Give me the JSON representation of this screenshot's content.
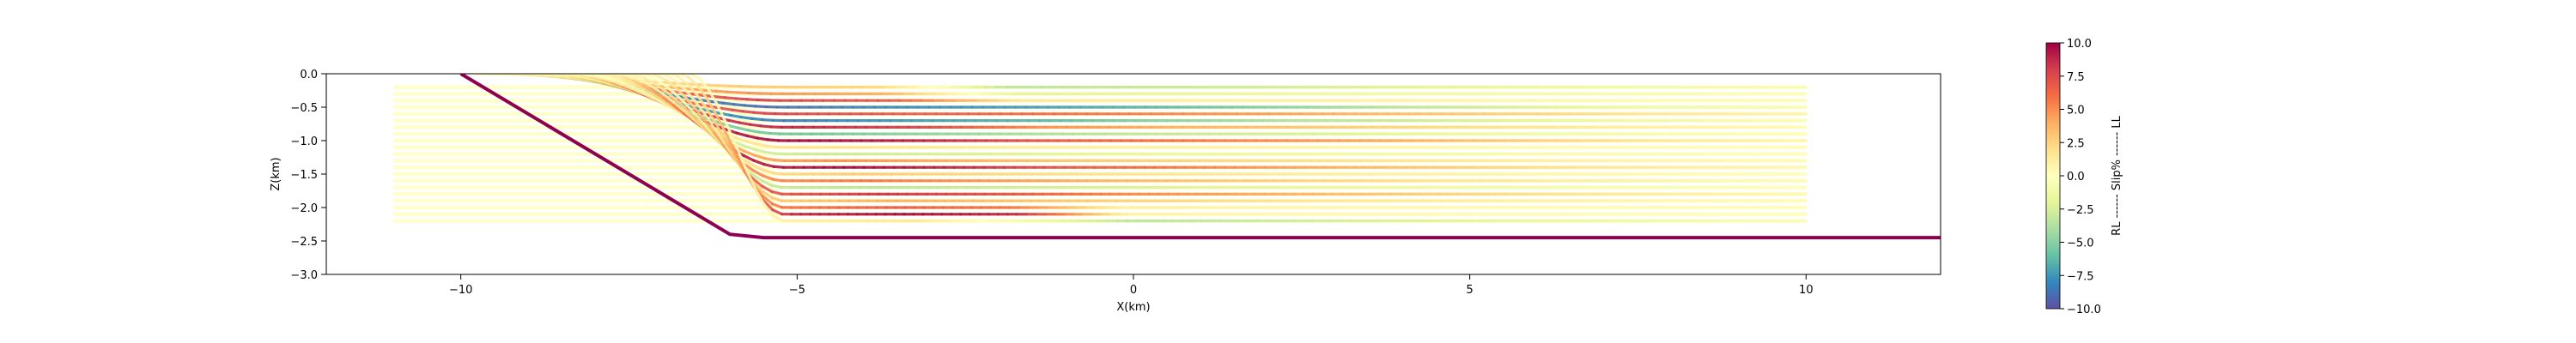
{
  "chart_data": {
    "type": "line",
    "title": "",
    "xlabel": "X(km)",
    "ylabel": "Z(km)",
    "xlim": [
      -12,
      12
    ],
    "ylim": [
      -3.0,
      0.0
    ],
    "xticks": [
      "−10",
      "−5",
      "0",
      "5",
      "10"
    ],
    "xtick_values": [
      -10,
      -5,
      0,
      5,
      10
    ],
    "yticks": [
      "0.0",
      "−0.5",
      "−1.0",
      "−1.5",
      "−2.0",
      "−2.5",
      "−3.0"
    ],
    "ytick_values": [
      0.0,
      -0.5,
      -1.0,
      -1.5,
      -2.0,
      -2.5,
      -3.0
    ],
    "fault": {
      "color": "#8e0152",
      "x": [
        -10.0,
        -6.0,
        -5.5,
        12.0
      ],
      "y": [
        0.0,
        -2.4,
        -2.45,
        -2.45
      ]
    },
    "colorbar": {
      "label": "RL ------ Slip% ------ LL",
      "min": -10.0,
      "max": 10.0,
      "ticks": [
        "10.0",
        "7.5",
        "5.0",
        "2.5",
        "0.0",
        "−2.5",
        "−5.0",
        "−7.5",
        "−10.0"
      ],
      "tick_values": [
        10.0,
        7.5,
        5.0,
        2.5,
        0.0,
        -2.5,
        -5.0,
        -7.5,
        -10.0
      ],
      "colormap": "Spectral_r"
    },
    "layers": [
      {
        "depth": -0.2,
        "slip": [
          0.4,
          2,
          3,
          2.5,
          -3.5,
          -3.2,
          -2.8,
          -2.2,
          -1.5,
          -1.0,
          -0.6
        ]
      },
      {
        "depth": -0.3,
        "slip": [
          0.5,
          3.5,
          5,
          4,
          -2,
          -1.8,
          -1.5,
          -1.2,
          -0.9,
          -0.6,
          -0.3
        ]
      },
      {
        "depth": -0.4,
        "slip": [
          0.6,
          6,
          8,
          7,
          1.5,
          1.2,
          1.0,
          0.8,
          0.6,
          0.4,
          0.3
        ]
      },
      {
        "depth": -0.5,
        "slip": [
          0.5,
          -8,
          -9,
          -8,
          -7.5,
          -6.5,
          -5,
          -3.5,
          -2.2,
          -1.2,
          -0.6
        ]
      },
      {
        "depth": -0.6,
        "slip": [
          0.5,
          6,
          8,
          7,
          6.5,
          5.5,
          4.5,
          3.5,
          2.5,
          1.5,
          0.8
        ]
      },
      {
        "depth": -0.7,
        "slip": [
          0.4,
          -7,
          -8.5,
          -7.5,
          -6.5,
          -5,
          -3.8,
          -2.8,
          -1.8,
          -1.0,
          -0.5
        ]
      },
      {
        "depth": -0.8,
        "slip": [
          0.5,
          8,
          9,
          8,
          5,
          4,
          3.2,
          2.4,
          1.6,
          0.9,
          0.4
        ]
      },
      {
        "depth": -0.9,
        "slip": [
          0.3,
          -5,
          -6,
          -5,
          -4,
          -3.2,
          -2.5,
          -1.8,
          -1.2,
          -0.7,
          -0.3
        ]
      },
      {
        "depth": -1.0,
        "slip": [
          0.6,
          9,
          10,
          9,
          7,
          6,
          5,
          3.8,
          2.6,
          1.5,
          0.7
        ]
      },
      {
        "depth": -1.1,
        "slip": [
          0.3,
          1.5,
          2,
          1.5,
          1.2,
          1.0,
          0.8,
          0.6,
          0.4,
          0.3,
          0.2
        ]
      },
      {
        "depth": -1.2,
        "slip": [
          0.4,
          -2.5,
          -3,
          -2.5,
          -2,
          -1.6,
          -1.3,
          -1.0,
          -0.7,
          -0.4,
          -0.2
        ]
      },
      {
        "depth": -1.3,
        "slip": [
          0.5,
          4,
          5,
          4,
          3,
          2.5,
          2,
          1.5,
          1.0,
          0.6,
          0.3
        ]
      },
      {
        "depth": -1.4,
        "slip": [
          0.7,
          9,
          10,
          9,
          7,
          5.5,
          4.2,
          3,
          2,
          1.2,
          0.6
        ]
      },
      {
        "depth": -1.5,
        "slip": [
          0.4,
          2,
          3,
          2.5,
          2,
          1.6,
          1.2,
          0.9,
          0.6,
          0.4,
          0.2
        ]
      },
      {
        "depth": -1.6,
        "slip": [
          0.5,
          5,
          6,
          5,
          4,
          3.2,
          2.5,
          1.8,
          1.2,
          0.7,
          0.3
        ]
      },
      {
        "depth": -1.7,
        "slip": [
          0.3,
          -3,
          -3.5,
          -3,
          -2.5,
          -2,
          -1.6,
          -1.2,
          -0.8,
          -0.5,
          -0.2
        ]
      },
      {
        "depth": -1.8,
        "slip": [
          0.6,
          7,
          8.5,
          7.5,
          5.5,
          4.5,
          3.5,
          2.6,
          1.8,
          1.0,
          0.5
        ]
      },
      {
        "depth": -1.9,
        "slip": [
          0.4,
          3,
          4,
          3.5,
          2.8,
          2.2,
          1.7,
          1.3,
          0.9,
          0.5,
          0.3
        ]
      },
      {
        "depth": -2.0,
        "slip": [
          0.5,
          6,
          7,
          6,
          1.0,
          0.8,
          0.6,
          0.5,
          0.4,
          0.3,
          0.2
        ]
      },
      {
        "depth": -2.1,
        "slip": [
          0.6,
          9,
          10,
          9,
          0.8,
          0.6,
          0.5,
          0.4,
          0.3,
          0.2,
          0.1
        ]
      },
      {
        "depth": -2.2,
        "slip": [
          0.3,
          1,
          1.5,
          -1,
          -3.5,
          -3.0,
          -2.5,
          -2.0,
          -1.5,
          -1.0,
          -0.5
        ]
      }
    ]
  }
}
